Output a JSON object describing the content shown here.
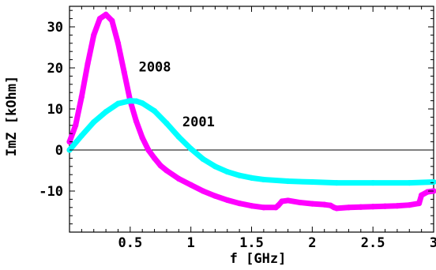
{
  "chart_data": {
    "type": "line",
    "xlabel": "f [GHz]",
    "ylabel": "ImZ [kOhm]",
    "xlim": [
      0,
      3.0
    ],
    "ylim": [
      -20,
      35
    ],
    "x_ticks": [
      0.5,
      1,
      1.5,
      2,
      2.5,
      3
    ],
    "x_tick_labels": [
      "0.5",
      "1",
      "1.5",
      "2",
      "2.5",
      "3"
    ],
    "y_ticks": [
      -10,
      0,
      10,
      20,
      30
    ],
    "y_tick_labels": [
      "-10",
      "0",
      "10",
      "20",
      "30"
    ],
    "zero_line": true,
    "grid": false,
    "series": [
      {
        "name": "2008",
        "color": "#ff00ff",
        "x": [
          0.0,
          0.05,
          0.1,
          0.15,
          0.2,
          0.25,
          0.3,
          0.35,
          0.4,
          0.45,
          0.5,
          0.55,
          0.6,
          0.65,
          0.7,
          0.75,
          0.8,
          0.9,
          1.0,
          1.1,
          1.2,
          1.3,
          1.4,
          1.5,
          1.6,
          1.7,
          1.72,
          1.75,
          1.8,
          1.9,
          2.0,
          2.1,
          2.15,
          2.18,
          2.2,
          2.3,
          2.4,
          2.5,
          2.6,
          2.7,
          2.8,
          2.88,
          2.9,
          2.95,
          3.0
        ],
        "y": [
          2,
          6,
          13,
          21,
          28,
          32,
          33,
          31.5,
          26,
          19,
          12,
          7,
          3,
          0,
          -2,
          -3.8,
          -5,
          -7,
          -8.5,
          -10,
          -11.2,
          -12.2,
          -13,
          -13.6,
          -14,
          -14,
          -13.5,
          -12.5,
          -12.3,
          -12.8,
          -13.1,
          -13.3,
          -13.5,
          -14,
          -14.2,
          -14,
          -13.9,
          -13.8,
          -13.7,
          -13.6,
          -13.4,
          -13,
          -11,
          -10.2,
          -10
        ]
      },
      {
        "name": "2001",
        "color": "#00ffff",
        "x": [
          0.0,
          0.1,
          0.2,
          0.3,
          0.4,
          0.5,
          0.55,
          0.6,
          0.7,
          0.8,
          0.9,
          1.0,
          1.1,
          1.2,
          1.3,
          1.4,
          1.5,
          1.6,
          1.8,
          2.0,
          2.2,
          2.5,
          2.8,
          3.0
        ],
        "y": [
          0,
          3.5,
          6.8,
          9.3,
          11.3,
          12,
          11.9,
          11.4,
          9.5,
          6.5,
          3.2,
          0.3,
          -2.2,
          -4,
          -5.3,
          -6.2,
          -6.8,
          -7.2,
          -7.6,
          -7.8,
          -8,
          -8,
          -8,
          -7.8
        ]
      }
    ]
  }
}
